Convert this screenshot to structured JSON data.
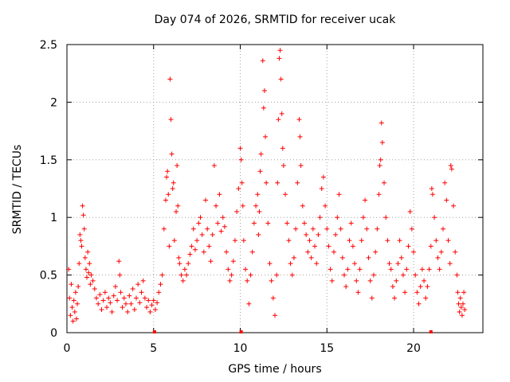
{
  "chart_data": {
    "type": "scatter",
    "title": "Day 074 of 2026, SRMTID for receiver ucak",
    "xlabel": "GPS time / hours",
    "ylabel": "SRMTID / TECUs",
    "xlim": [
      0,
      24
    ],
    "ylim": [
      0,
      2.5
    ],
    "xticks": [
      "0",
      "5",
      "10",
      "15",
      "20"
    ],
    "yticks": [
      "0",
      "0.5",
      "1",
      "1.5",
      "2",
      "2.5"
    ],
    "grid": true,
    "marker": "+",
    "color": "#ff0000",
    "series": [
      {
        "name": "SRMTID",
        "points": [
          [
            0.1,
            0.55
          ],
          [
            0.15,
            0.3
          ],
          [
            0.2,
            0.15
          ],
          [
            0.25,
            0.42
          ],
          [
            0.3,
            0.22
          ],
          [
            0.35,
            0.1
          ],
          [
            0.4,
            0.28
          ],
          [
            0.45,
            0.18
          ],
          [
            0.5,
            0.35
          ],
          [
            0.55,
            0.12
          ],
          [
            0.6,
            0.25
          ],
          [
            0.65,
            0.4
          ],
          [
            0.7,
            0.6
          ],
          [
            0.75,
            0.85
          ],
          [
            0.8,
            0.8
          ],
          [
            0.85,
            0.75
          ],
          [
            0.9,
            1.1
          ],
          [
            0.95,
            1.02
          ],
          [
            1.0,
            0.9
          ],
          [
            1.05,
            0.65
          ],
          [
            1.1,
            0.55
          ],
          [
            1.15,
            0.48
          ],
          [
            1.2,
            0.7
          ],
          [
            1.25,
            0.52
          ],
          [
            1.3,
            0.6
          ],
          [
            1.35,
            0.42
          ],
          [
            1.4,
            0.5
          ],
          [
            1.5,
            0.45
          ],
          [
            1.6,
            0.38
          ],
          [
            1.7,
            0.3
          ],
          [
            1.8,
            0.25
          ],
          [
            1.9,
            0.33
          ],
          [
            2.0,
            0.2
          ],
          [
            2.1,
            0.28
          ],
          [
            2.2,
            0.35
          ],
          [
            2.3,
            0.22
          ],
          [
            2.4,
            0.3
          ],
          [
            2.5,
            0.26
          ],
          [
            2.6,
            0.18
          ],
          [
            2.7,
            0.32
          ],
          [
            2.8,
            0.4
          ],
          [
            2.9,
            0.28
          ],
          [
            3.0,
            0.62
          ],
          [
            3.05,
            0.5
          ],
          [
            3.1,
            0.35
          ],
          [
            3.2,
            0.22
          ],
          [
            3.3,
            0.3
          ],
          [
            3.4,
            0.25
          ],
          [
            3.5,
            0.18
          ],
          [
            3.6,
            0.32
          ],
          [
            3.7,
            0.25
          ],
          [
            3.8,
            0.38
          ],
          [
            3.9,
            0.2
          ],
          [
            4.0,
            0.3
          ],
          [
            4.1,
            0.42
          ],
          [
            4.2,
            0.26
          ],
          [
            4.3,
            0.35
          ],
          [
            4.4,
            0.45
          ],
          [
            4.5,
            0.3
          ],
          [
            4.6,
            0.22
          ],
          [
            4.7,
            0.28
          ],
          [
            4.8,
            0.18
          ],
          [
            4.9,
            0.24
          ],
          [
            5.0,
            0.28
          ],
          [
            5.1,
            0.2
          ],
          [
            5.2,
            0.26
          ],
          [
            5.3,
            0.35
          ],
          [
            5.4,
            0.42
          ],
          [
            5.5,
            0.5
          ],
          [
            5.6,
            0.9
          ],
          [
            5.7,
            1.15
          ],
          [
            5.75,
            1.35
          ],
          [
            5.8,
            1.4
          ],
          [
            5.85,
            1.2
          ],
          [
            5.9,
            0.75
          ],
          [
            5.95,
            2.2
          ],
          [
            6.0,
            1.85
          ],
          [
            6.05,
            1.55
          ],
          [
            6.1,
            1.25
          ],
          [
            6.15,
            1.3
          ],
          [
            6.2,
            0.8
          ],
          [
            6.3,
            1.05
          ],
          [
            6.35,
            1.45
          ],
          [
            6.4,
            1.1
          ],
          [
            6.45,
            0.65
          ],
          [
            6.5,
            0.6
          ],
          [
            6.6,
            0.5
          ],
          [
            6.7,
            0.45
          ],
          [
            6.8,
            0.55
          ],
          [
            6.9,
            0.5
          ],
          [
            7.0,
            0.6
          ],
          [
            7.1,
            0.68
          ],
          [
            7.2,
            0.75
          ],
          [
            7.3,
            0.9
          ],
          [
            7.4,
            0.72
          ],
          [
            7.5,
            0.8
          ],
          [
            7.6,
            0.95
          ],
          [
            7.7,
            1.0
          ],
          [
            7.8,
            0.85
          ],
          [
            7.9,
            0.7
          ],
          [
            8.0,
            1.15
          ],
          [
            8.1,
            0.9
          ],
          [
            8.2,
            0.75
          ],
          [
            8.3,
            0.62
          ],
          [
            8.4,
            0.85
          ],
          [
            8.5,
            1.45
          ],
          [
            8.6,
            1.1
          ],
          [
            8.7,
            0.95
          ],
          [
            8.8,
            1.2
          ],
          [
            8.9,
            0.88
          ],
          [
            9.0,
            1.0
          ],
          [
            9.1,
            0.92
          ],
          [
            9.2,
            0.7
          ],
          [
            9.3,
            0.55
          ],
          [
            9.4,
            0.45
          ],
          [
            9.5,
            0.5
          ],
          [
            9.6,
            0.62
          ],
          [
            9.7,
            0.8
          ],
          [
            9.8,
            1.05
          ],
          [
            9.9,
            1.25
          ],
          [
            10.0,
            1.6
          ],
          [
            10.05,
            1.5
          ],
          [
            10.1,
            1.3
          ],
          [
            10.15,
            1.1
          ],
          [
            10.2,
            0.8
          ],
          [
            10.3,
            0.55
          ],
          [
            10.4,
            0.45
          ],
          [
            10.5,
            0.25
          ],
          [
            10.6,
            0.5
          ],
          [
            10.7,
            0.7
          ],
          [
            10.8,
            0.95
          ],
          [
            10.9,
            1.1
          ],
          [
            11.0,
            1.2
          ],
          [
            11.05,
            0.85
          ],
          [
            11.1,
            1.05
          ],
          [
            11.15,
            1.4
          ],
          [
            11.2,
            1.55
          ],
          [
            11.3,
            2.36
          ],
          [
            11.35,
            1.95
          ],
          [
            11.4,
            2.1
          ],
          [
            11.45,
            1.7
          ],
          [
            11.5,
            1.3
          ],
          [
            11.6,
            0.95
          ],
          [
            11.7,
            0.6
          ],
          [
            11.8,
            0.45
          ],
          [
            11.9,
            0.3
          ],
          [
            12.0,
            0.15
          ],
          [
            12.1,
            0.5
          ],
          [
            12.15,
            1.3
          ],
          [
            12.2,
            1.85
          ],
          [
            12.25,
            2.38
          ],
          [
            12.3,
            2.45
          ],
          [
            12.35,
            2.2
          ],
          [
            12.4,
            1.9
          ],
          [
            12.45,
            1.6
          ],
          [
            12.5,
            1.45
          ],
          [
            12.6,
            1.2
          ],
          [
            12.7,
            0.95
          ],
          [
            12.8,
            0.8
          ],
          [
            12.9,
            0.6
          ],
          [
            13.0,
            0.5
          ],
          [
            13.1,
            0.65
          ],
          [
            13.2,
            0.9
          ],
          [
            13.3,
            1.3
          ],
          [
            13.4,
            1.85
          ],
          [
            13.45,
            1.7
          ],
          [
            13.5,
            1.45
          ],
          [
            13.6,
            1.1
          ],
          [
            13.7,
            0.95
          ],
          [
            13.8,
            0.85
          ],
          [
            13.9,
            0.7
          ],
          [
            14.0,
            0.8
          ],
          [
            14.1,
            0.65
          ],
          [
            14.2,
            0.9
          ],
          [
            14.3,
            0.75
          ],
          [
            14.4,
            0.6
          ],
          [
            14.5,
            0.85
          ],
          [
            14.6,
            1.0
          ],
          [
            14.7,
            1.25
          ],
          [
            14.8,
            1.35
          ],
          [
            14.9,
            1.1
          ],
          [
            15.0,
            0.9
          ],
          [
            15.1,
            0.75
          ],
          [
            15.2,
            0.55
          ],
          [
            15.3,
            0.45
          ],
          [
            15.4,
            0.7
          ],
          [
            15.5,
            0.85
          ],
          [
            15.6,
            1.0
          ],
          [
            15.7,
            1.2
          ],
          [
            15.8,
            0.9
          ],
          [
            15.9,
            0.65
          ],
          [
            16.0,
            0.5
          ],
          [
            16.1,
            0.4
          ],
          [
            16.2,
            0.55
          ],
          [
            16.3,
            0.8
          ],
          [
            16.4,
            0.95
          ],
          [
            16.5,
            0.75
          ],
          [
            16.6,
            0.6
          ],
          [
            16.7,
            0.45
          ],
          [
            16.8,
            0.35
          ],
          [
            16.9,
            0.55
          ],
          [
            17.0,
            0.8
          ],
          [
            17.1,
            1.0
          ],
          [
            17.2,
            1.15
          ],
          [
            17.3,
            0.9
          ],
          [
            17.4,
            0.65
          ],
          [
            17.5,
            0.45
          ],
          [
            17.6,
            0.3
          ],
          [
            17.7,
            0.5
          ],
          [
            17.8,
            0.7
          ],
          [
            17.9,
            0.9
          ],
          [
            18.0,
            1.2
          ],
          [
            18.05,
            1.45
          ],
          [
            18.1,
            1.5
          ],
          [
            18.15,
            1.82
          ],
          [
            18.2,
            1.65
          ],
          [
            18.3,
            1.3
          ],
          [
            18.4,
            1.0
          ],
          [
            18.5,
            0.8
          ],
          [
            18.6,
            0.6
          ],
          [
            18.7,
            0.55
          ],
          [
            18.8,
            0.4
          ],
          [
            18.9,
            0.3
          ],
          [
            19.0,
            0.45
          ],
          [
            19.1,
            0.6
          ],
          [
            19.2,
            0.8
          ],
          [
            19.3,
            0.65
          ],
          [
            19.4,
            0.5
          ],
          [
            19.5,
            0.35
          ],
          [
            19.6,
            0.55
          ],
          [
            19.7,
            0.75
          ],
          [
            19.8,
            1.05
          ],
          [
            19.9,
            0.9
          ],
          [
            20.0,
            0.7
          ],
          [
            20.1,
            0.5
          ],
          [
            20.2,
            0.35
          ],
          [
            20.3,
            0.25
          ],
          [
            20.4,
            0.4
          ],
          [
            20.5,
            0.55
          ],
          [
            20.6,
            0.45
          ],
          [
            20.7,
            0.3
          ],
          [
            20.8,
            0.4
          ],
          [
            20.9,
            0.55
          ],
          [
            21.0,
            0.75
          ],
          [
            21.05,
            1.25
          ],
          [
            21.1,
            1.2
          ],
          [
            21.2,
            1.0
          ],
          [
            21.3,
            0.8
          ],
          [
            21.4,
            0.65
          ],
          [
            21.5,
            0.55
          ],
          [
            21.6,
            0.7
          ],
          [
            21.7,
            0.9
          ],
          [
            21.8,
            1.3
          ],
          [
            21.9,
            1.15
          ],
          [
            22.0,
            0.8
          ],
          [
            22.1,
            0.6
          ],
          [
            22.15,
            1.45
          ],
          [
            22.2,
            1.42
          ],
          [
            22.3,
            1.1
          ],
          [
            22.4,
            0.7
          ],
          [
            22.5,
            0.5
          ],
          [
            22.55,
            0.35
          ],
          [
            22.6,
            0.25
          ],
          [
            22.65,
            0.18
          ],
          [
            22.7,
            0.3
          ],
          [
            22.75,
            0.22
          ],
          [
            22.8,
            0.15
          ],
          [
            22.85,
            0.25
          ],
          [
            22.9,
            0.35
          ],
          [
            22.95,
            0.2
          ]
        ]
      }
    ]
  }
}
